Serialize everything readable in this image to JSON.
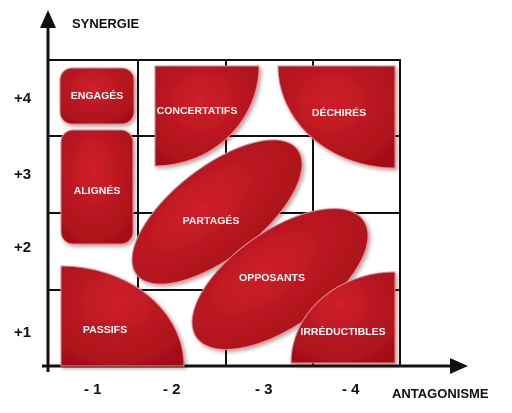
{
  "diagram": {
    "y_axis_title": "SYNERGIE",
    "x_axis_title": "ANTAGONISME",
    "y_ticks": [
      "+4",
      "+3",
      "+2",
      "+1"
    ],
    "x_ticks": [
      "- 1",
      "- 2",
      "- 3",
      "- 4"
    ],
    "shape_color": "#b5121b",
    "shape_shadow_color": "#8a0a12",
    "grid_color": "#111111",
    "groups": {
      "engages": "ENGAGÉS",
      "alignes": "ALIGNÉS",
      "passifs": "PASSIFS",
      "concertatifs": "CONCERTATIFS",
      "dechires": "DÉCHIRÉS",
      "partages": "PARTAGÉS",
      "opposants": "OPPOSANTS",
      "irreductibles": "IRRÉDUCTIBLES"
    }
  }
}
